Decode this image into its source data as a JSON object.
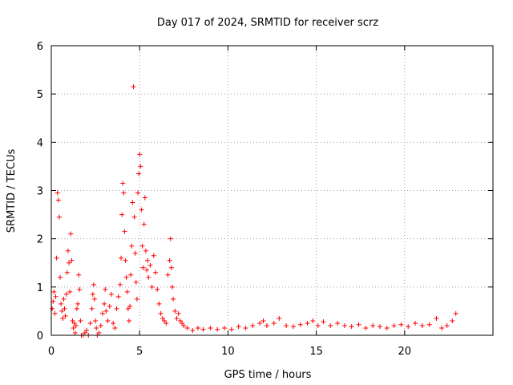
{
  "chart_data": {
    "type": "scatter",
    "title": "Day 017 of 2024, SRMTID for receiver scrz",
    "xlabel": "GPS time / hours",
    "ylabel": "SRMTID / TECUs",
    "xlim": [
      0,
      25
    ],
    "ylim": [
      0,
      6
    ],
    "xticks": [
      0,
      5,
      10,
      15,
      20
    ],
    "yticks": [
      0,
      1,
      2,
      3,
      4,
      5,
      6
    ],
    "grid": true,
    "marker": "+",
    "color": "#ff0000",
    "series": [
      {
        "name": "SRMTID",
        "points": [
          [
            0.05,
            0.55
          ],
          [
            0.1,
            0.7
          ],
          [
            0.15,
            0.9
          ],
          [
            0.2,
            0.45
          ],
          [
            0.25,
            0.8
          ],
          [
            0.3,
            1.6
          ],
          [
            0.35,
            2.95
          ],
          [
            0.4,
            2.8
          ],
          [
            0.45,
            2.45
          ],
          [
            0.5,
            1.2
          ],
          [
            0.55,
            0.65
          ],
          [
            0.6,
            0.5
          ],
          [
            0.65,
            0.35
          ],
          [
            0.7,
            0.75
          ],
          [
            0.75,
            0.55
          ],
          [
            0.8,
            0.4
          ],
          [
            0.85,
            0.85
          ],
          [
            0.9,
            1.3
          ],
          [
            0.95,
            1.75
          ],
          [
            1.0,
            1.5
          ],
          [
            1.05,
            0.9
          ],
          [
            1.1,
            2.1
          ],
          [
            1.15,
            1.55
          ],
          [
            1.2,
            0.3
          ],
          [
            1.25,
            0.15
          ],
          [
            1.3,
            0.25
          ],
          [
            1.35,
            0.05
          ],
          [
            1.4,
            0.2
          ],
          [
            1.45,
            0.55
          ],
          [
            1.5,
            0.65
          ],
          [
            1.55,
            1.25
          ],
          [
            1.6,
            0.95
          ],
          [
            1.65,
            0.3
          ],
          [
            1.7,
            0.0
          ],
          [
            1.8,
            0.0
          ],
          [
            1.9,
            0.05
          ],
          [
            2.0,
            0.1
          ],
          [
            2.1,
            0.0
          ],
          [
            2.2,
            0.25
          ],
          [
            2.3,
            0.55
          ],
          [
            2.35,
            0.85
          ],
          [
            2.4,
            1.05
          ],
          [
            2.45,
            0.75
          ],
          [
            2.5,
            0.3
          ],
          [
            2.55,
            0.15
          ],
          [
            2.6,
            0.0
          ],
          [
            2.7,
            0.05
          ],
          [
            2.8,
            0.2
          ],
          [
            2.9,
            0.45
          ],
          [
            3.0,
            0.65
          ],
          [
            3.05,
            0.95
          ],
          [
            3.1,
            0.5
          ],
          [
            3.2,
            0.3
          ],
          [
            3.3,
            0.6
          ],
          [
            3.4,
            0.85
          ],
          [
            3.5,
            0.25
          ],
          [
            3.6,
            0.15
          ],
          [
            3.7,
            0.55
          ],
          [
            3.8,
            0.8
          ],
          [
            3.9,
            1.05
          ],
          [
            3.95,
            1.6
          ],
          [
            4.0,
            2.5
          ],
          [
            4.05,
            3.15
          ],
          [
            4.1,
            2.95
          ],
          [
            4.15,
            2.15
          ],
          [
            4.2,
            1.55
          ],
          [
            4.25,
            1.2
          ],
          [
            4.3,
            0.9
          ],
          [
            4.35,
            0.55
          ],
          [
            4.4,
            0.3
          ],
          [
            4.45,
            0.6
          ],
          [
            4.5,
            1.25
          ],
          [
            4.55,
            1.85
          ],
          [
            4.6,
            2.75
          ],
          [
            4.65,
            5.15
          ],
          [
            4.7,
            2.45
          ],
          [
            4.75,
            1.7
          ],
          [
            4.8,
            1.1
          ],
          [
            4.85,
            0.75
          ],
          [
            4.9,
            2.95
          ],
          [
            4.95,
            3.35
          ],
          [
            5.0,
            3.75
          ],
          [
            5.05,
            3.5
          ],
          [
            5.1,
            2.6
          ],
          [
            5.15,
            1.85
          ],
          [
            5.2,
            1.4
          ],
          [
            5.25,
            2.3
          ],
          [
            5.3,
            2.85
          ],
          [
            5.35,
            1.75
          ],
          [
            5.4,
            1.35
          ],
          [
            5.45,
            1.55
          ],
          [
            5.5,
            1.2
          ],
          [
            5.6,
            1.45
          ],
          [
            5.7,
            1.0
          ],
          [
            5.8,
            1.65
          ],
          [
            5.9,
            1.3
          ],
          [
            6.0,
            0.95
          ],
          [
            6.1,
            0.65
          ],
          [
            6.2,
            0.45
          ],
          [
            6.3,
            0.35
          ],
          [
            6.4,
            0.3
          ],
          [
            6.5,
            0.25
          ],
          [
            6.6,
            1.25
          ],
          [
            6.7,
            1.55
          ],
          [
            6.75,
            2.0
          ],
          [
            6.8,
            1.4
          ],
          [
            6.85,
            1.0
          ],
          [
            6.9,
            0.75
          ],
          [
            7.0,
            0.5
          ],
          [
            7.1,
            0.35
          ],
          [
            7.2,
            0.45
          ],
          [
            7.3,
            0.3
          ],
          [
            7.4,
            0.25
          ],
          [
            7.5,
            0.2
          ],
          [
            7.7,
            0.15
          ],
          [
            8.0,
            0.1
          ],
          [
            8.3,
            0.15
          ],
          [
            8.6,
            0.12
          ],
          [
            9.0,
            0.15
          ],
          [
            9.4,
            0.12
          ],
          [
            9.8,
            0.15
          ],
          [
            10.2,
            0.12
          ],
          [
            10.6,
            0.18
          ],
          [
            11.0,
            0.15
          ],
          [
            11.4,
            0.2
          ],
          [
            11.8,
            0.25
          ],
          [
            12.0,
            0.3
          ],
          [
            12.2,
            0.2
          ],
          [
            12.6,
            0.25
          ],
          [
            12.9,
            0.35
          ],
          [
            13.3,
            0.2
          ],
          [
            13.7,
            0.18
          ],
          [
            14.1,
            0.22
          ],
          [
            14.5,
            0.25
          ],
          [
            14.8,
            0.3
          ],
          [
            15.1,
            0.2
          ],
          [
            15.4,
            0.28
          ],
          [
            15.8,
            0.2
          ],
          [
            16.2,
            0.25
          ],
          [
            16.6,
            0.2
          ],
          [
            17.0,
            0.18
          ],
          [
            17.4,
            0.22
          ],
          [
            17.8,
            0.15
          ],
          [
            18.2,
            0.2
          ],
          [
            18.6,
            0.18
          ],
          [
            19.0,
            0.15
          ],
          [
            19.4,
            0.2
          ],
          [
            19.8,
            0.22
          ],
          [
            20.2,
            0.18
          ],
          [
            20.6,
            0.25
          ],
          [
            21.0,
            0.2
          ],
          [
            21.4,
            0.22
          ],
          [
            21.8,
            0.35
          ],
          [
            22.1,
            0.15
          ],
          [
            22.4,
            0.2
          ],
          [
            22.7,
            0.3
          ],
          [
            22.9,
            0.45
          ]
        ]
      }
    ]
  }
}
